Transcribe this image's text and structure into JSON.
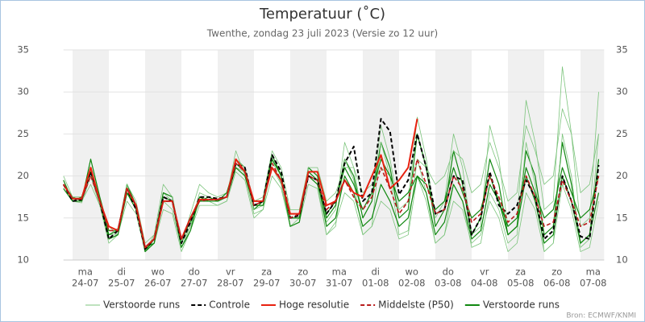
{
  "chart_data": {
    "type": "line",
    "title": "Temperatuur (˚C)",
    "subtitle": "Twenthe, zondag 23 juli 2023 (Versie zo 12 uur)",
    "source": "Bron: ECMWF/KNMI",
    "ylim": [
      10,
      35
    ],
    "yticks": [
      10,
      15,
      20,
      25,
      30,
      35
    ],
    "grid": true,
    "xlim": [
      -0.25,
      14.65
    ],
    "alternate_day_shading": true,
    "xticks": [
      {
        "value": 0.35,
        "label": [
          "ma",
          "24-07"
        ]
      },
      {
        "value": 1.35,
        "label": [
          "di",
          "25-07"
        ]
      },
      {
        "value": 2.35,
        "label": [
          "wo",
          "26-07"
        ]
      },
      {
        "value": 3.35,
        "label": [
          "do",
          "27-07"
        ]
      },
      {
        "value": 4.35,
        "label": [
          "vr",
          "28-07"
        ]
      },
      {
        "value": 5.35,
        "label": [
          "za",
          "29-07"
        ]
      },
      {
        "value": 6.35,
        "label": [
          "zo",
          "30-07"
        ]
      },
      {
        "value": 7.35,
        "label": [
          "ma",
          "31-07"
        ]
      },
      {
        "value": 8.35,
        "label": [
          "di",
          "01-08"
        ]
      },
      {
        "value": 9.35,
        "label": [
          "wo",
          "02-08"
        ]
      },
      {
        "value": 10.35,
        "label": [
          "do",
          "03-08"
        ]
      },
      {
        "value": 11.35,
        "label": [
          "vr",
          "04-08"
        ]
      },
      {
        "value": 12.35,
        "label": [
          "za",
          "05-08"
        ]
      },
      {
        "value": 13.35,
        "label": [
          "zo",
          "06-08"
        ]
      },
      {
        "value": 14.35,
        "label": [
          "ma",
          "07-08"
        ]
      }
    ],
    "x": [
      -0.25,
      0,
      0.25,
      0.5,
      0.75,
      1,
      1.25,
      1.5,
      1.75,
      2,
      2.25,
      2.5,
      2.75,
      3,
      3.25,
      3.5,
      3.75,
      4,
      4.25,
      4.5,
      4.75,
      5,
      5.25,
      5.5,
      5.75,
      6,
      6.25,
      6.5,
      6.75,
      7,
      7.25,
      7.5,
      7.75,
      8,
      8.25,
      8.5,
      8.75,
      9,
      9.25,
      9.5,
      9.75,
      10,
      10.25,
      10.5,
      10.75,
      11,
      11.25,
      11.5,
      11.75,
      12,
      12.25,
      12.5,
      12.75,
      13,
      13.25,
      13.5,
      13.75,
      14,
      14.25,
      14.5
    ],
    "series": [
      {
        "name": "Verstoorde runs",
        "color": "#7cc47c",
        "width": 0.8,
        "values": [
          19.5,
          17,
          17,
          22,
          17.5,
          13,
          13,
          19,
          16,
          11.5,
          12,
          18,
          17,
          12,
          14,
          18,
          17.5,
          17,
          17.5,
          23,
          20,
          15.5,
          16,
          22,
          19,
          14,
          14.5,
          21,
          20,
          14.5,
          16,
          24,
          21,
          15,
          17,
          26,
          22,
          16,
          17,
          27,
          22,
          15,
          17,
          25,
          21,
          13,
          14,
          26,
          22,
          14,
          15,
          29,
          24,
          16,
          17,
          33,
          25,
          14,
          15,
          30
        ]
      },
      {
        "name": "Controle",
        "color": "#000000",
        "width": 2,
        "dash": true,
        "values": [
          19,
          17,
          17.2,
          20.5,
          17,
          12.5,
          13.5,
          18.5,
          16,
          11.3,
          12.5,
          17.5,
          17,
          12,
          14.5,
          17.5,
          17.5,
          17.3,
          17.5,
          21.5,
          21,
          16.5,
          17,
          22.5,
          20.5,
          15,
          15.3,
          20,
          19.5,
          15.5,
          17,
          21.5,
          23.5,
          17,
          18,
          26.8,
          25.3,
          17.8,
          19.5,
          25,
          21,
          15.5,
          16,
          20,
          19.5,
          13,
          15,
          20.5,
          16.5,
          15.5,
          16.5,
          19.5,
          17.5,
          12.5,
          13.5,
          20,
          17,
          12.8,
          12.5,
          21.3
        ]
      },
      {
        "name": "Hoge resolutie",
        "color": "#e8210f",
        "width": 2,
        "values": [
          19,
          17.3,
          17.3,
          21,
          17,
          14,
          13.5,
          18.5,
          16.5,
          11.5,
          12.5,
          17,
          17,
          12.5,
          15,
          17.2,
          17.2,
          17.2,
          17.5,
          22,
          20.5,
          17,
          17,
          21,
          19.5,
          15.5,
          15.5,
          20.5,
          20.5,
          16.5,
          17,
          19.5,
          18,
          17.5,
          20,
          22.5,
          18.5,
          19.5,
          21,
          26.8,
          null,
          null,
          null,
          null,
          null,
          null,
          null,
          null,
          null,
          null,
          null,
          null,
          null,
          null,
          null,
          null,
          null,
          null,
          null,
          null
        ]
      },
      {
        "name": "Middelste (P50)",
        "color": "#b81c1c",
        "width": 1.6,
        "dash": true,
        "values": [
          19,
          17.3,
          17.2,
          20,
          17,
          13.5,
          13.5,
          18.5,
          16.5,
          11.5,
          12.5,
          17,
          17,
          12.5,
          15,
          17,
          17.2,
          17.2,
          17.5,
          21.5,
          20.5,
          16.5,
          17,
          21.5,
          19.5,
          15,
          15.5,
          20,
          19.5,
          16,
          17,
          19.5,
          17.5,
          16,
          17.5,
          21,
          18.5,
          15.5,
          17,
          22,
          19,
          15.5,
          16,
          20,
          18.5,
          14.5,
          15.5,
          20,
          17.5,
          14.5,
          15.5,
          20,
          17.5,
          14,
          14.5,
          19.5,
          17,
          14,
          14.5,
          20
        ]
      },
      {
        "name": "Verstoorde runs",
        "color": "#118811",
        "width": 1.2,
        "values": [
          19,
          17.5,
          17,
          22,
          17.5,
          13.5,
          13.5,
          19,
          16.5,
          11,
          12.5,
          18,
          17.5,
          12,
          15,
          17,
          17.5,
          17,
          17.5,
          22,
          21,
          16,
          17,
          22.5,
          20,
          15,
          15,
          21,
          20,
          15,
          16.5,
          22,
          20,
          15,
          17,
          24,
          21,
          15,
          16,
          25,
          21,
          14,
          16,
          23,
          19,
          13,
          15,
          22,
          19,
          13,
          14,
          23,
          20,
          13,
          14,
          24,
          19,
          12,
          13,
          22
        ]
      },
      {
        "name": "Verstoorde runs",
        "color": "#7cc47c",
        "width": 0.8,
        "values": [
          18.5,
          17,
          16.8,
          20,
          16.5,
          13,
          13.8,
          18,
          16.5,
          11,
          13,
          17,
          16,
          11.5,
          14,
          17,
          17,
          16.5,
          17,
          21,
          20.5,
          16,
          16.5,
          21,
          19,
          14,
          15,
          20,
          19,
          13,
          14,
          22,
          19.5,
          13,
          14,
          24,
          20,
          13,
          13.5,
          22,
          18,
          12,
          13,
          19,
          17,
          11.5,
          12,
          18,
          16,
          12,
          13,
          24,
          19,
          11,
          12,
          25,
          20,
          11.5,
          12.5,
          25
        ]
      },
      {
        "name": "Verstoorde runs",
        "color": "#7cc47c",
        "width": 0.8,
        "values": [
          20,
          17.5,
          17.5,
          21,
          17,
          14,
          13,
          19,
          17,
          12,
          13,
          19,
          17.5,
          12,
          15.5,
          19,
          18,
          17.5,
          18,
          22,
          21,
          17,
          17.5,
          23,
          21,
          16,
          16,
          21,
          21,
          17,
          18,
          21,
          21,
          18,
          19,
          21,
          20,
          17,
          18,
          22,
          21,
          19,
          20,
          23,
          22,
          18,
          19,
          24,
          21,
          17,
          18,
          26,
          23,
          19,
          20,
          28,
          25,
          18,
          19,
          25
        ]
      },
      {
        "name": "Verstoorde runs",
        "color": "#7cc47c",
        "width": 0.8,
        "values": [
          19,
          17,
          17,
          19,
          16.5,
          12,
          13,
          17,
          15.5,
          11,
          12,
          16,
          15.5,
          11,
          13.5,
          16.5,
          16.5,
          16.5,
          17,
          20.5,
          19.5,
          15,
          16,
          20,
          18.5,
          14,
          14.5,
          19,
          18.5,
          13,
          14.5,
          18,
          17,
          13,
          14,
          17,
          16,
          12.5,
          13,
          20,
          17,
          12,
          13,
          17,
          16,
          12,
          13,
          17,
          15,
          11,
          12,
          18,
          16,
          11,
          12,
          19,
          16,
          11,
          11.5,
          17
        ]
      },
      {
        "name": "Verstoorde runs",
        "color": "#118811",
        "width": 1.2,
        "values": [
          18.5,
          17,
          17,
          21,
          17,
          13,
          13.5,
          18,
          16,
          11.5,
          12,
          17,
          17,
          12.5,
          14.5,
          17,
          17,
          17,
          17.5,
          21,
          20,
          16.5,
          17,
          21,
          19.5,
          15,
          15,
          20,
          19,
          15.5,
          17,
          21,
          19,
          16,
          18,
          22,
          20,
          17,
          18,
          20,
          19,
          16,
          17,
          21,
          18,
          15,
          16,
          20,
          17,
          14,
          15,
          21,
          18,
          15,
          16,
          21,
          18,
          15,
          16,
          20
        ]
      },
      {
        "name": "Verstoorde runs",
        "color": "#118811",
        "width": 1.2,
        "values": [
          19.5,
          17,
          17.5,
          20.5,
          17,
          12.5,
          13,
          18,
          16.5,
          11,
          12,
          17.5,
          17,
          11.5,
          13.5,
          17.5,
          17,
          17,
          18,
          21.5,
          20.5,
          16.5,
          16.5,
          22,
          20,
          14,
          14.5,
          20.5,
          19.5,
          14,
          15,
          20,
          18,
          14,
          15,
          19,
          17,
          14,
          15,
          20,
          18,
          13,
          14.5,
          19,
          17,
          12.5,
          13.5,
          19,
          17,
          13,
          14,
          20,
          17,
          12,
          13,
          20,
          17,
          12,
          13,
          18
        ]
      }
    ]
  }
}
